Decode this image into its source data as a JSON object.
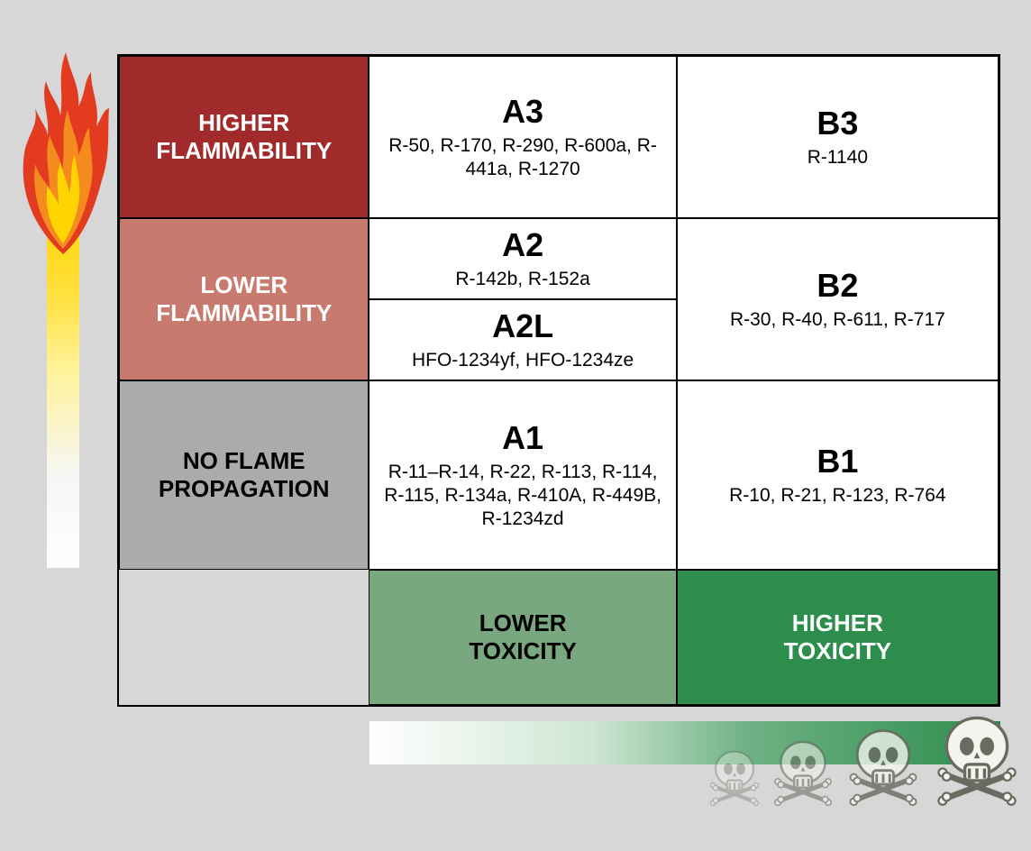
{
  "rows": {
    "higher": {
      "label_line1": "HIGHER",
      "label_line2": "FLAMMABILITY",
      "label_bg": "#a12a2a",
      "label_color": "#ffffff",
      "a": {
        "code": "A3",
        "items": "R-50, R-170, R-290, R-600a, R-441a, R-1270"
      },
      "b": {
        "code": "B3",
        "items": "R-1140"
      }
    },
    "lower": {
      "label_line1": "LOWER",
      "label_line2": "FLAMMABILITY",
      "label_bg": "#c77a6d",
      "label_color": "#ffffff",
      "a_top": {
        "code": "A2",
        "items": "R-142b, R-152a"
      },
      "a_bottom": {
        "code": "A2L",
        "items": "HFO-1234yf, HFO-1234ze"
      },
      "b": {
        "code": "B2",
        "items": "R-30, R-40, R-611, R-717"
      }
    },
    "none": {
      "label_line1": "NO FLAME",
      "label_line2": "PROPAGATION",
      "label_bg": "#acabab",
      "label_color": "#000000",
      "a": {
        "code": "A1",
        "items": "R-11–R-14, R-22, R-113, R-114, R-115, R-134a, R-410A, R-449B, R-1234zd"
      },
      "b": {
        "code": "B1",
        "items": "R-10, R-21, R-123, R-764"
      }
    }
  },
  "toxicity": {
    "lower": {
      "line1": "LOWER",
      "line2": "TOXICITY",
      "bg": "#79a880",
      "color": "#000000"
    },
    "higher": {
      "line1": "HIGHER",
      "line2": "TOXICITY",
      "bg": "#2c8d4c",
      "color": "#ffffff"
    }
  },
  "style": {
    "page_bg": "#d7d7d7",
    "border_color": "#000000",
    "code_fontsize": 36,
    "items_fontsize": 21,
    "label_fontsize": 26,
    "flame_gradient": [
      "#ffd400",
      "#ffe040",
      "#fff39a",
      "#f6f6f6",
      "#ffffff"
    ],
    "skull_bar_gradient": [
      "#ffffff",
      "#cfe6d4",
      "#6fb184",
      "#2c8d4c"
    ],
    "flame_colors": {
      "outer": "#e23b1f",
      "mid": "#f58a1f",
      "inner": "#ffd400"
    },
    "skull_fill": "#f4f4ee",
    "skull_stroke": "#6a6a60",
    "skull_opacities": [
      0.35,
      0.55,
      0.8,
      1.0
    ],
    "skull_sizes": [
      70,
      82,
      96,
      112
    ]
  }
}
